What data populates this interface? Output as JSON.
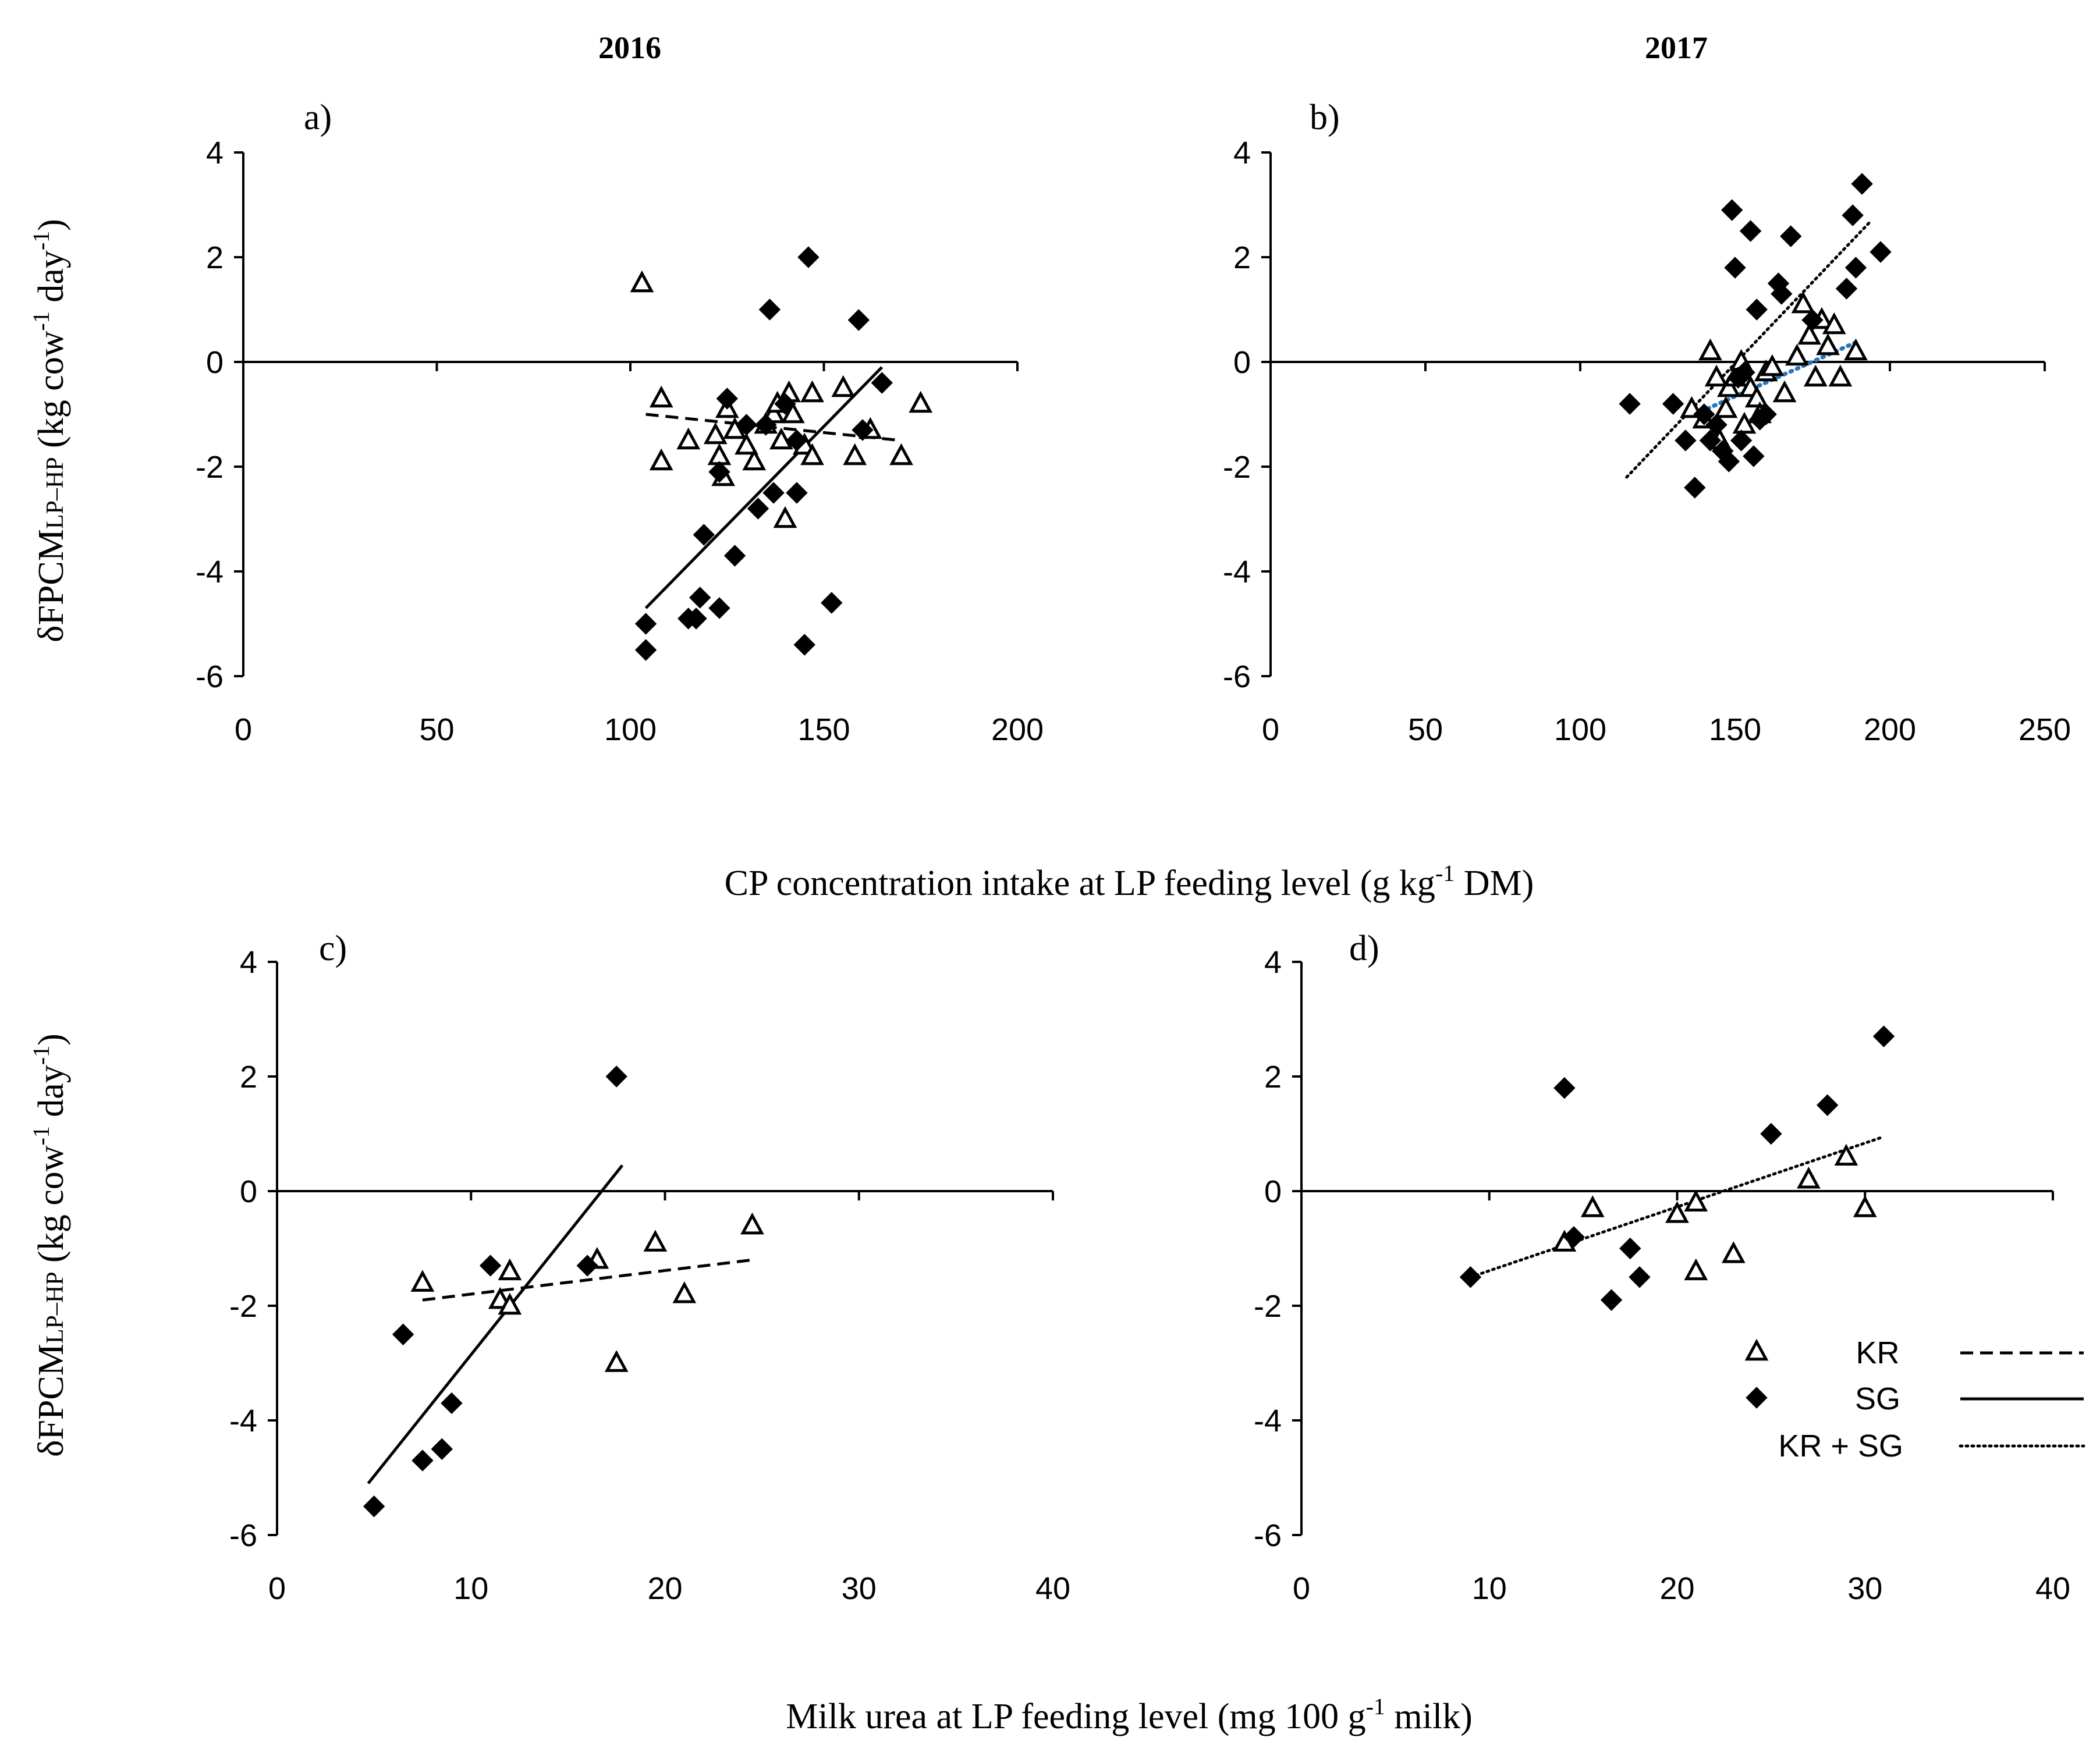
{
  "figure": {
    "col_titles": [
      "2016",
      "2017"
    ],
    "top_xlabel": "CP concentration intake at LP feeding level (g kg",
    "top_xlabel_sup": "-1",
    "top_xlabel_tail": " DM)",
    "bottom_xlabel": "Milk urea at LP feeding level (mg 100 g",
    "bottom_xlabel_sup": "-1",
    "bottom_xlabel_tail": " milk)",
    "ylabel": {
      "main": "δFPCM",
      "sub": "LP–HP",
      "mid1": " (kg cow",
      "sup1": "-1",
      "mid2": " day",
      "sup2": "-1",
      "end": ")"
    },
    "legend": [
      {
        "label": "KR",
        "marker": "triangle-open",
        "line": "dashed"
      },
      {
        "label": "SG",
        "marker": "diamond-filled",
        "line": "solid"
      },
      {
        "label": "KR + SG",
        "marker": "none",
        "line": "dotted"
      }
    ],
    "colors": {
      "ink": "#000000",
      "kr_sg_2017_fit": "#2e75b6"
    }
  },
  "chart_data": [
    {
      "panel": "a)",
      "type": "scatter",
      "title": "2016",
      "xlim": [
        0,
        200
      ],
      "xticks": [
        0,
        50,
        100,
        150,
        200
      ],
      "ylim": [
        -6,
        4
      ],
      "yticks": [
        -6,
        -4,
        -2,
        0,
        2,
        4
      ],
      "series": [
        {
          "name": "KR",
          "marker": "triangle-open",
          "points": [
            [
              103,
              1.5
            ],
            [
              108,
              -0.7
            ],
            [
              108,
              -1.9
            ],
            [
              115,
              -1.5
            ],
            [
              122,
              -1.4
            ],
            [
              123,
              -1.8
            ],
            [
              124,
              -2.2
            ],
            [
              125,
              -0.9
            ],
            [
              127,
              -1.3
            ],
            [
              130,
              -1.6
            ],
            [
              132,
              -1.9
            ],
            [
              135,
              -1.2
            ],
            [
              137,
              -1.0
            ],
            [
              138,
              -0.8
            ],
            [
              139,
              -1.5
            ],
            [
              140,
              -3.0
            ],
            [
              141,
              -0.6
            ],
            [
              142,
              -1.0
            ],
            [
              145,
              -1.6
            ],
            [
              147,
              -1.8
            ],
            [
              147,
              -0.6
            ],
            [
              155,
              -0.5
            ],
            [
              158,
              -1.8
            ],
            [
              162,
              -1.3
            ],
            [
              170,
              -1.8
            ],
            [
              175,
              -0.8
            ]
          ]
        },
        {
          "name": "SG",
          "marker": "diamond-filled",
          "points": [
            [
              104,
              -5.0
            ],
            [
              104,
              -5.5
            ],
            [
              115,
              -4.9
            ],
            [
              117,
              -4.9
            ],
            [
              118,
              -4.5
            ],
            [
              119,
              -3.3
            ],
            [
              123,
              -4.7
            ],
            [
              123,
              -2.1
            ],
            [
              125,
              -0.7
            ],
            [
              127,
              -3.7
            ],
            [
              130,
              -1.2
            ],
            [
              133,
              -2.8
            ],
            [
              135,
              -1.2
            ],
            [
              136,
              1.0
            ],
            [
              137,
              -2.5
            ],
            [
              140,
              -0.8
            ],
            [
              143,
              -2.5
            ],
            [
              143,
              -1.5
            ],
            [
              145,
              -5.4
            ],
            [
              146,
              2.0
            ],
            [
              152,
              -4.6
            ],
            [
              159,
              0.8
            ],
            [
              160,
              -1.3
            ],
            [
              165,
              -0.4
            ]
          ]
        }
      ],
      "fits": [
        {
          "name": "KR",
          "style": "dashed",
          "x": [
            104,
            170
          ],
          "y": [
            -1.0,
            -1.5
          ]
        },
        {
          "name": "SG",
          "style": "solid",
          "x": [
            104,
            165
          ],
          "y": [
            -4.7,
            -0.1
          ]
        }
      ]
    },
    {
      "panel": "b)",
      "type": "scatter",
      "title": "2017",
      "xlim": [
        0,
        250
      ],
      "xticks": [
        0,
        50,
        100,
        150,
        200,
        250
      ],
      "ylim": [
        -6,
        4
      ],
      "yticks": [
        -6,
        -4,
        -2,
        0,
        2,
        4
      ],
      "series": [
        {
          "name": "KR",
          "marker": "triangle-open",
          "points": [
            [
              136,
              -0.9
            ],
            [
              140,
              -1.1
            ],
            [
              142,
              0.2
            ],
            [
              144,
              -0.3
            ],
            [
              145,
              -1.5
            ],
            [
              147,
              -0.9
            ],
            [
              148,
              -0.5
            ],
            [
              150,
              -0.3
            ],
            [
              152,
              0.0
            ],
            [
              153,
              -1.2
            ],
            [
              155,
              -0.5
            ],
            [
              157,
              -0.7
            ],
            [
              158,
              -1.0
            ],
            [
              160,
              -0.2
            ],
            [
              162,
              -0.1
            ],
            [
              166,
              -0.6
            ],
            [
              170,
              0.1
            ],
            [
              172,
              1.1
            ],
            [
              174,
              0.5
            ],
            [
              176,
              -0.3
            ],
            [
              178,
              0.8
            ],
            [
              180,
              0.3
            ],
            [
              182,
              0.7
            ],
            [
              184,
              -0.3
            ],
            [
              189,
              0.2
            ]
          ]
        },
        {
          "name": "SG",
          "marker": "diamond-filled",
          "points": [
            [
              116,
              -0.8
            ],
            [
              130,
              -0.8
            ],
            [
              134,
              -1.5
            ],
            [
              137,
              -2.4
            ],
            [
              140,
              -1.0
            ],
            [
              142,
              -1.5
            ],
            [
              144,
              -1.2
            ],
            [
              146,
              -1.7
            ],
            [
              148,
              -1.9
            ],
            [
              149,
              2.9
            ],
            [
              150,
              1.8
            ],
            [
              151,
              -0.3
            ],
            [
              152,
              -1.5
            ],
            [
              153,
              -0.2
            ],
            [
              155,
              2.5
            ],
            [
              156,
              -1.8
            ],
            [
              157,
              1.0
            ],
            [
              158,
              -1.1
            ],
            [
              160,
              -1.0
            ],
            [
              164,
              1.5
            ],
            [
              165,
              1.3
            ],
            [
              168,
              2.4
            ],
            [
              175,
              0.8
            ],
            [
              186,
              1.4
            ],
            [
              188,
              2.8
            ],
            [
              189,
              1.8
            ],
            [
              191,
              3.4
            ],
            [
              197,
              2.1
            ]
          ]
        }
      ],
      "fits": [
        {
          "name": "KR + SG",
          "style": "dotted",
          "x": [
            115,
            194
          ],
          "y": [
            -2.2,
            2.7
          ]
        },
        {
          "name": "KR",
          "style": "dotted-blue",
          "x": [
            137,
            190
          ],
          "y": [
            -1.0,
            0.4
          ]
        }
      ]
    },
    {
      "panel": "c)",
      "type": "scatter",
      "title": "",
      "xlim": [
        0,
        40
      ],
      "xticks": [
        0,
        10,
        20,
        30,
        40
      ],
      "ylim": [
        -6,
        4
      ],
      "yticks": [
        -6,
        -4,
        -2,
        0,
        2,
        4
      ],
      "series": [
        {
          "name": "KR",
          "marker": "triangle-open",
          "points": [
            [
              7.5,
              -1.6
            ],
            [
              11.5,
              -1.9
            ],
            [
              12,
              -1.4
            ],
            [
              12,
              -2.0
            ],
            [
              16.5,
              -1.2
            ],
            [
              17.5,
              -3.0
            ],
            [
              19.5,
              -0.9
            ],
            [
              21,
              -1.8
            ],
            [
              24.5,
              -0.6
            ]
          ]
        },
        {
          "name": "SG",
          "marker": "diamond-filled",
          "points": [
            [
              5,
              -5.5
            ],
            [
              6.5,
              -2.5
            ],
            [
              7.5,
              -4.7
            ],
            [
              8.5,
              -4.5
            ],
            [
              9,
              -3.7
            ],
            [
              11,
              -1.3
            ],
            [
              16,
              -1.3
            ],
            [
              17.5,
              2.0
            ]
          ]
        }
      ],
      "fits": [
        {
          "name": "KR",
          "style": "dashed",
          "x": [
            7.5,
            24.5
          ],
          "y": [
            -1.9,
            -1.2
          ]
        },
        {
          "name": "SG",
          "style": "solid",
          "x": [
            4.7,
            17.8
          ],
          "y": [
            -5.1,
            0.45
          ]
        }
      ]
    },
    {
      "panel": "d)",
      "type": "scatter",
      "title": "",
      "xlim": [
        0,
        40
      ],
      "xticks": [
        0,
        10,
        20,
        30,
        40
      ],
      "ylim": [
        -6,
        4
      ],
      "yticks": [
        -6,
        -4,
        -2,
        0,
        2,
        4
      ],
      "series": [
        {
          "name": "KR",
          "marker": "triangle-open",
          "points": [
            [
              14,
              -0.9
            ],
            [
              15.5,
              -0.3
            ],
            [
              20,
              -0.4
            ],
            [
              21,
              -0.2
            ],
            [
              21,
              -1.4
            ],
            [
              23,
              -1.1
            ],
            [
              27,
              0.2
            ],
            [
              29,
              0.6
            ],
            [
              30,
              -0.3
            ]
          ]
        },
        {
          "name": "SG",
          "marker": "diamond-filled",
          "points": [
            [
              9,
              -1.5
            ],
            [
              14,
              1.8
            ],
            [
              14.5,
              -0.8
            ],
            [
              16.5,
              -1.9
            ],
            [
              17.5,
              -1.0
            ],
            [
              18,
              -1.5
            ],
            [
              25,
              1.0
            ],
            [
              28,
              1.5
            ],
            [
              31,
              2.7
            ]
          ]
        }
      ],
      "fits": [
        {
          "name": "KR + SG",
          "style": "dotted",
          "x": [
            9,
            31
          ],
          "y": [
            -1.5,
            0.95
          ]
        }
      ]
    }
  ]
}
